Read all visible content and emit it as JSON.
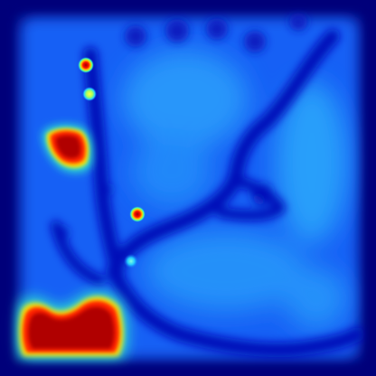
{
  "image": {
    "kind": "false-color intensity heatmap",
    "colormap": [
      "#00007f",
      "#0000ff",
      "#0060ff",
      "#00c8ff",
      "#40ffb0",
      "#ffff00",
      "#ff8000",
      "#ff0000",
      "#a00000"
    ],
    "colors": {
      "frame": "#00008a",
      "deep_channel": "#00009e",
      "field_base": "#1466f5",
      "field_light": "#36b4fb",
      "hot_core": "#b30000",
      "hot_mid": "#ff1a00",
      "hot_edge": "#ffe600",
      "warm_halo": "#34f5d0"
    },
    "hotspots": [
      {
        "name": "large-bottom-left-blob",
        "intensity": "max"
      },
      {
        "name": "upper-left-blob",
        "intensity": "max"
      },
      {
        "name": "small-spot-top",
        "intensity": "high"
      },
      {
        "name": "small-spot-middle",
        "intensity": "high"
      },
      {
        "name": "small-spot-yellow",
        "intensity": "medium"
      },
      {
        "name": "small-spot-cyan",
        "intensity": "low"
      }
    ]
  }
}
